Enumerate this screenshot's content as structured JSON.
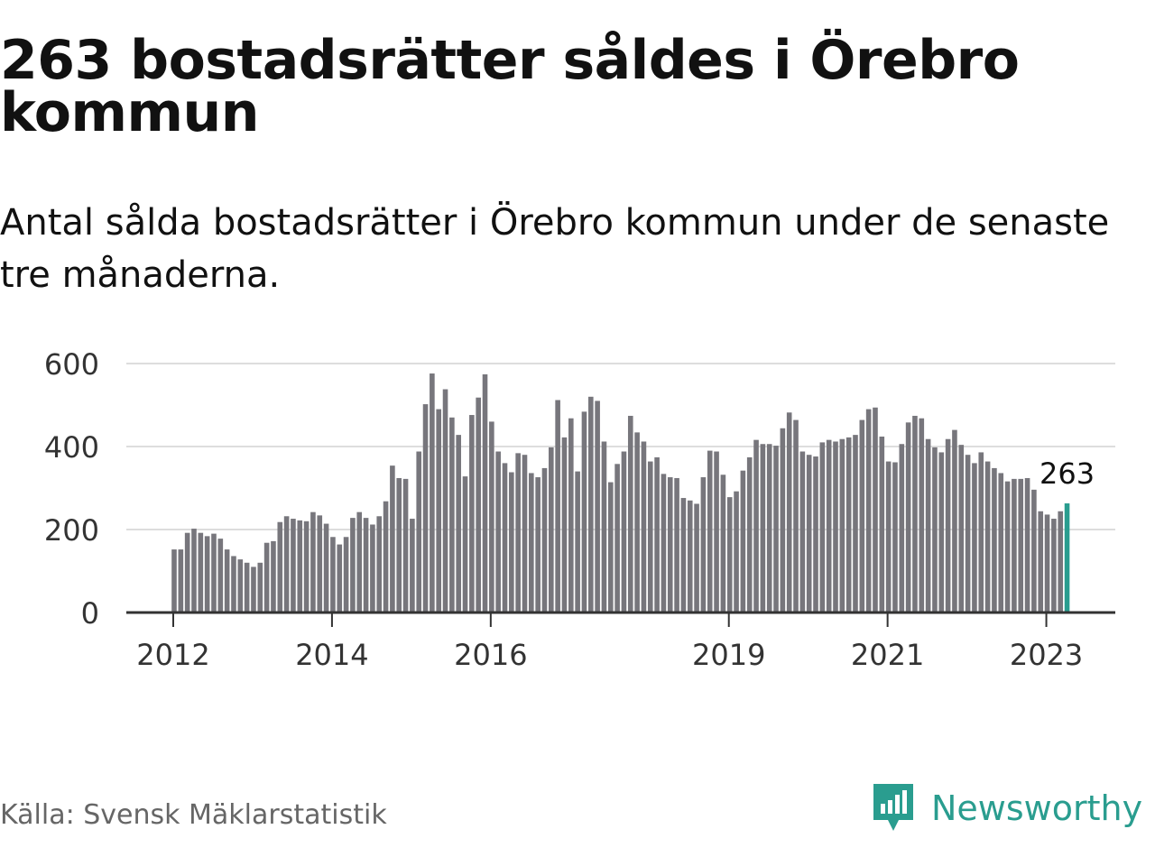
{
  "header": {
    "title": "263 bostadsrätter såldes i Örebro kommun",
    "subtitle": "Antal sålda bostadsrätter i Örebro kommun under de senaste tre månaderna."
  },
  "footer": {
    "source": "Källa: Svensk Mäklarstatistik",
    "brand": "Newsworthy"
  },
  "colors": {
    "bar": "#77767c",
    "highlight": "#2a9d8f",
    "grid": "#dddddd",
    "axis": "#333333",
    "brand": "#2a9d8f"
  },
  "chart_data": {
    "type": "bar",
    "title": "263 bostadsrätter såldes i Örebro kommun",
    "subtitle": "Antal sålda bostadsrätter i Örebro kommun under de senaste tre månaderna.",
    "x_start": "2012-01",
    "frequency": "monthly",
    "values": [
      152,
      152,
      192,
      202,
      192,
      184,
      190,
      178,
      152,
      136,
      128,
      120,
      110,
      120,
      168,
      172,
      218,
      232,
      226,
      222,
      220,
      242,
      234,
      214,
      182,
      164,
      182,
      228,
      242,
      228,
      212,
      232,
      268,
      354,
      324,
      322,
      226,
      388,
      502,
      576,
      490,
      538,
      470,
      428,
      328,
      476,
      518,
      574,
      460,
      388,
      360,
      338,
      384,
      380,
      336,
      326,
      348,
      398,
      512,
      422,
      468,
      340,
      484,
      520,
      510,
      412,
      314,
      358,
      388,
      474,
      434,
      412,
      364,
      374,
      334,
      326,
      324,
      276,
      270,
      262,
      326,
      390,
      388,
      332,
      278,
      292,
      342,
      374,
      416,
      406,
      406,
      402,
      444,
      482,
      464,
      388,
      380,
      376,
      410,
      416,
      412,
      418,
      422,
      428,
      464,
      490,
      494,
      424,
      364,
      362,
      406,
      458,
      474,
      468,
      418,
      398,
      386,
      418,
      440,
      404,
      380,
      360,
      386,
      364,
      348,
      336,
      316,
      322,
      322,
      324,
      296,
      244,
      236,
      226,
      244,
      263
    ],
    "highlight_last": true,
    "annotation": "263",
    "y_ticks": [
      0,
      200,
      400,
      600
    ],
    "y_tick_labels": [
      "0",
      "200",
      "400",
      "600"
    ],
    "x_ticks": [
      "2012-01",
      "2014-01",
      "2016-01",
      "2019-01",
      "2021-01",
      "2023-01"
    ],
    "x_tick_labels": [
      "2012",
      "2014",
      "2016",
      "2019",
      "2021",
      "2023"
    ],
    "ylim": [
      0,
      600
    ],
    "grid": true,
    "legend": "none"
  }
}
